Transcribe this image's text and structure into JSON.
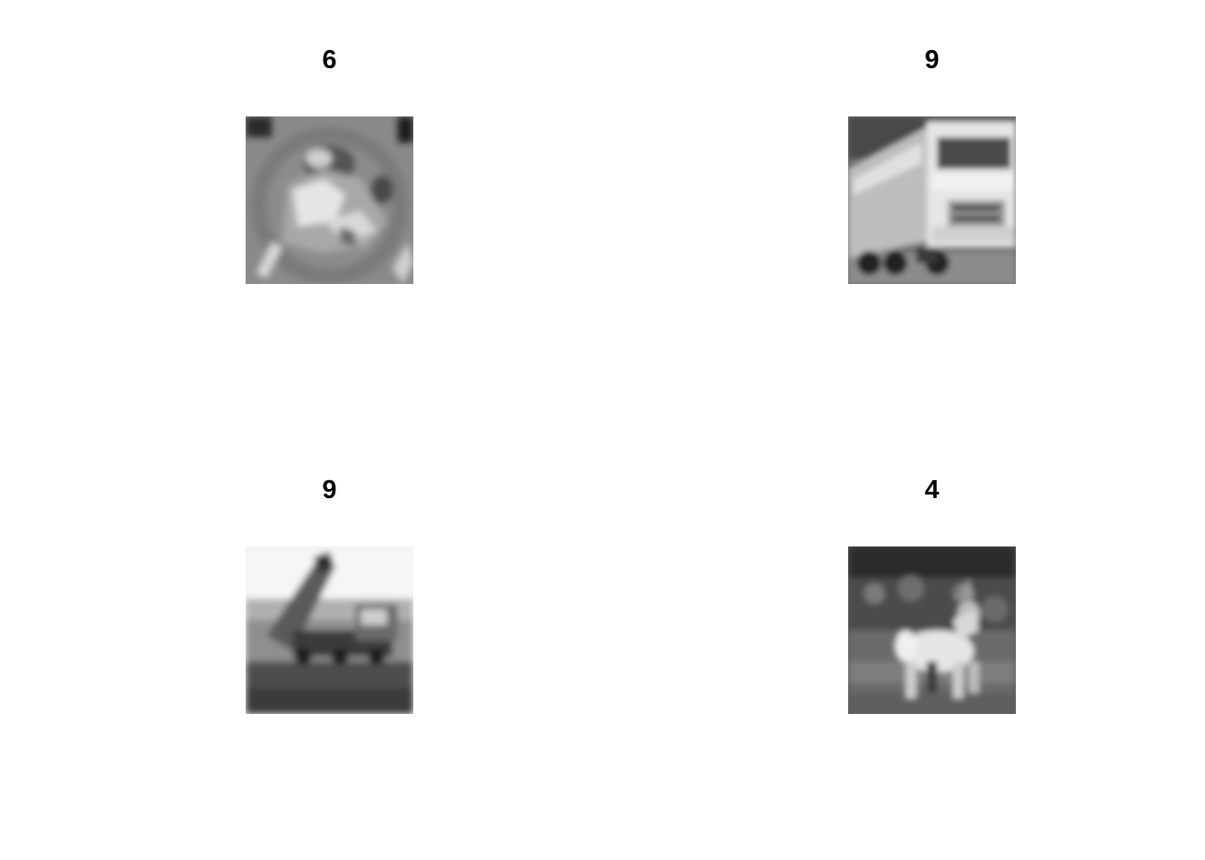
{
  "panels": [
    {
      "label": "6",
      "subject": "frog"
    },
    {
      "label": "9",
      "subject": "truck"
    },
    {
      "label": "9",
      "subject": "dump-truck"
    },
    {
      "label": "4",
      "subject": "deer"
    }
  ]
}
